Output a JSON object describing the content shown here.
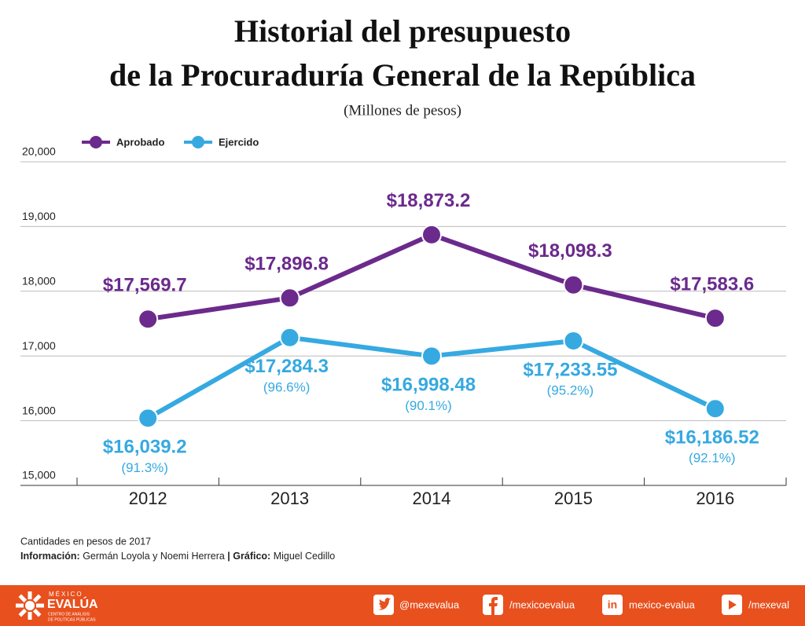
{
  "chart_data": {
    "type": "line",
    "title": [
      "Historial del presupuesto",
      "de la Procuraduría General de la República"
    ],
    "subtitle": "(Millones de pesos)",
    "categories": [
      "2012",
      "2013",
      "2014",
      "2015",
      "2016"
    ],
    "series": [
      {
        "name": "Aprobado",
        "color": "#6b2a8c",
        "values": [
          17569.7,
          17896.8,
          18873.2,
          18098.3,
          17583.6
        ],
        "value_labels": [
          "$17,569.7",
          "$17,896.8",
          "$18,873.2",
          "$18,098.3",
          "$17,583.6"
        ]
      },
      {
        "name": "Ejercido",
        "color": "#36a9e1",
        "values": [
          16039.2,
          17284.3,
          16998.48,
          17233.55,
          16186.52
        ],
        "value_labels": [
          "$16,039.2",
          "$17,284.3",
          "$16,998.48",
          "$17,233.55",
          "$16,186.52"
        ],
        "percent_labels": [
          "(91.3%)",
          "(96.6%)",
          "(90.1%)",
          "(95.2%)",
          "(92.1%)"
        ]
      }
    ],
    "ylim": [
      15000,
      20000
    ],
    "yticks": [
      {
        "value": 15000,
        "label": "15,000"
      },
      {
        "value": 16000,
        "label": "16,000"
      },
      {
        "value": 17000,
        "label": "17,000"
      },
      {
        "value": 18000,
        "label": "18,000"
      },
      {
        "value": 19000,
        "label": "19,000"
      },
      {
        "value": 20000,
        "label": "20,000"
      }
    ],
    "grid": true
  },
  "footer": {
    "note": "Cantidades en pesos de 2017",
    "credits": [
      "Información:",
      "Germán Loyola y Noemi Herrera",
      "|",
      "Gráfico:",
      "Miguel Cedillo"
    ],
    "brand": [
      "MÉXICO",
      "EVALÚA",
      "CENTRO DE ANÁLISIS",
      "DE POLÍTICAS PÚBLICAS"
    ],
    "social": [
      "@mexevalua",
      "/mexicoevalua",
      "mexico-evalua",
      "/mexeval"
    ]
  }
}
